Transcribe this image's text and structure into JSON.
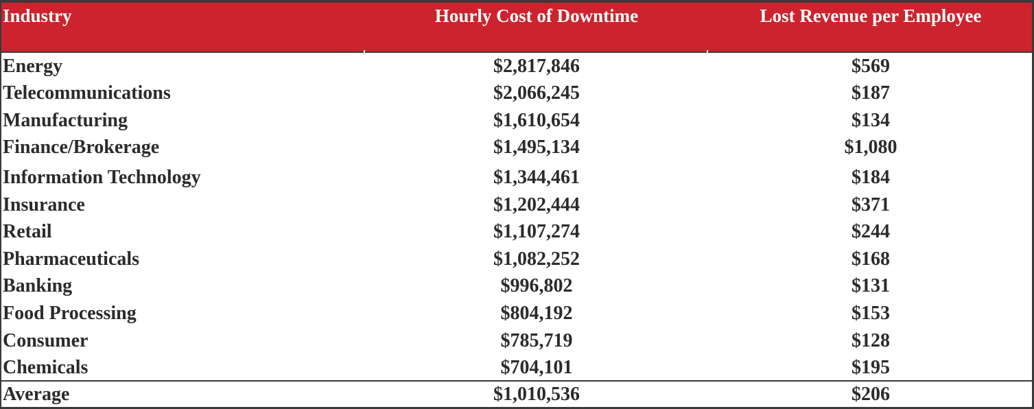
{
  "header": {
    "industry": "Industry",
    "hourly_cost": "Hourly Cost of Downtime",
    "lost_revenue": "Lost Revenue per Employee"
  },
  "rows": [
    {
      "industry": "Energy",
      "hourly_cost": "$2,817,846",
      "lost_revenue": "$569"
    },
    {
      "industry": "Telecommunications",
      "hourly_cost": "$2,066,245",
      "lost_revenue": "$187"
    },
    {
      "industry": "Manufacturing",
      "hourly_cost": "$1,610,654",
      "lost_revenue": "$134"
    },
    {
      "industry": "Finance/Brokerage",
      "hourly_cost": "$1,495,134",
      "lost_revenue": "$1,080"
    },
    {
      "industry": "Information Technology",
      "hourly_cost": "$1,344,461",
      "lost_revenue": "$184"
    },
    {
      "industry": "Insurance",
      "hourly_cost": "$1,202,444",
      "lost_revenue": "$371"
    },
    {
      "industry": "Retail",
      "hourly_cost": "$1,107,274",
      "lost_revenue": "$244"
    },
    {
      "industry": "Pharmaceuticals",
      "hourly_cost": "$1,082,252",
      "lost_revenue": "$168"
    },
    {
      "industry": "Banking",
      "hourly_cost": "$996,802",
      "lost_revenue": "$131"
    },
    {
      "industry": "Food Processing",
      "hourly_cost": "$804,192",
      "lost_revenue": "$153"
    },
    {
      "industry": "Consumer",
      "hourly_cost": "$785,719",
      "lost_revenue": "$128"
    },
    {
      "industry": "Chemicals",
      "hourly_cost": "$704,101",
      "lost_revenue": "$195"
    }
  ],
  "average": {
    "industry": "Average",
    "hourly_cost": "$1,010,536",
    "lost_revenue": "$206"
  },
  "colors": {
    "header_bg": "#cc232e",
    "header_text": "#ffffff",
    "border": "#3a3a3a",
    "text": "#2b2b2b"
  }
}
